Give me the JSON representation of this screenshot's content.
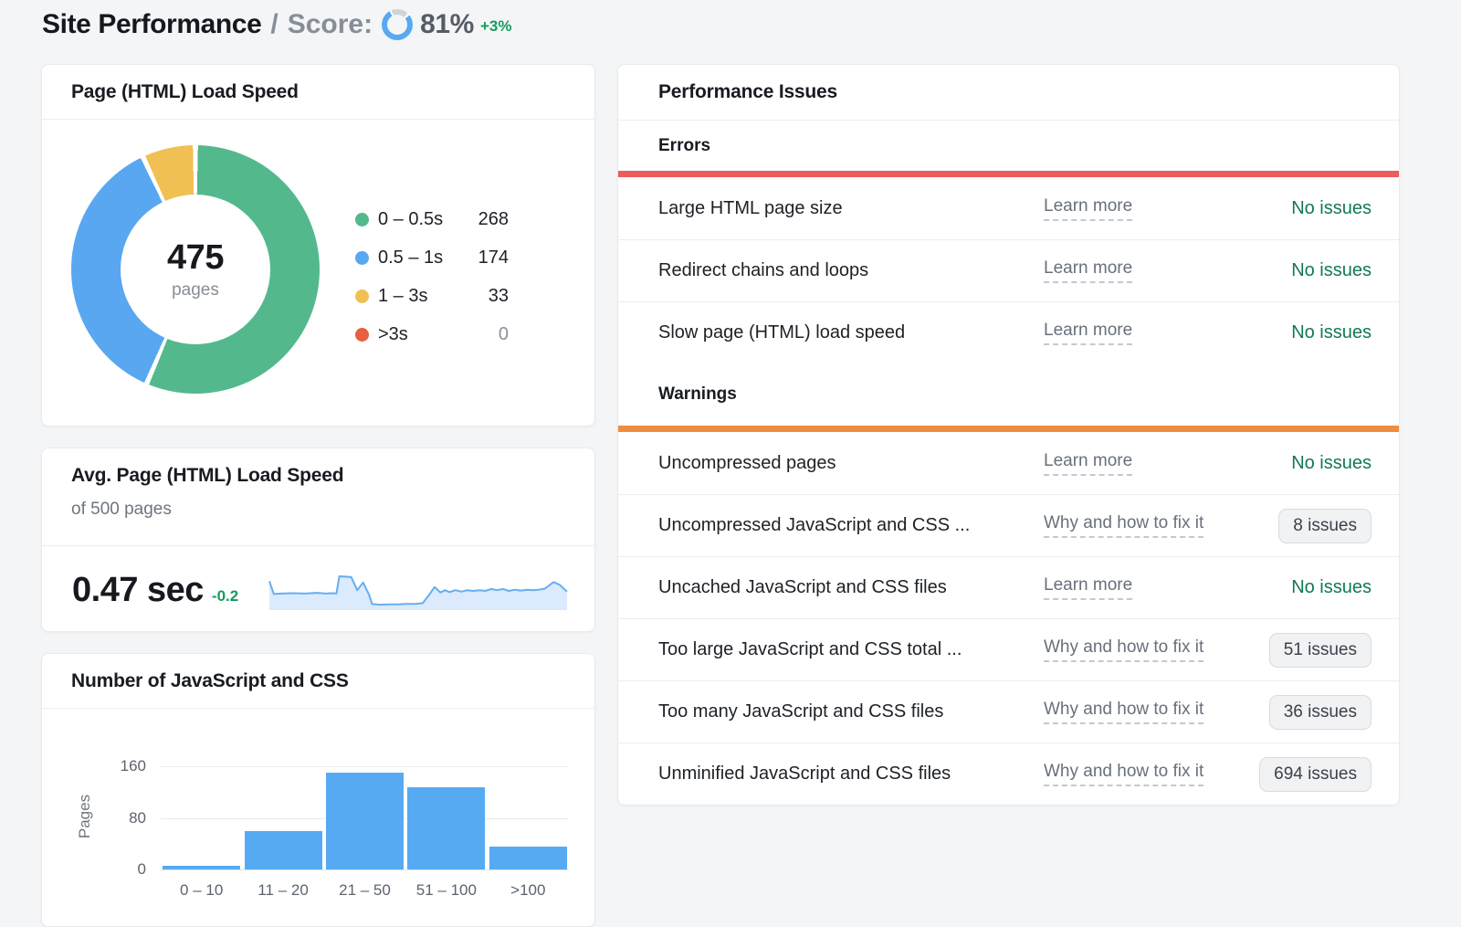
{
  "header": {
    "title": "Site Performance",
    "divider": "/",
    "score_label": "Score:",
    "score_value": "81%",
    "score_percent": 81,
    "score_delta": "+3%"
  },
  "colors": {
    "score_blue": "#58a9f2",
    "score_rest": "#cfd4da",
    "bar_blue": "#56aaf2",
    "spark_line": "#66aef1",
    "spark_fill": "#dbeafc",
    "accent_error": "#eb5c5c",
    "accent_warning": "#ee8d3f",
    "status_green": "#117a50",
    "delta_green": "#169a5f"
  },
  "chart_data": [
    {
      "type": "pie",
      "title": "Page (HTML) Load Speed",
      "center_value": "475",
      "center_label": "pages",
      "legend_position": "right",
      "slices": [
        {
          "label": "0 – 0.5s",
          "value": 268,
          "color": "#53b98d"
        },
        {
          "label": "0.5 – 1s",
          "value": 174,
          "color": "#59a7f0"
        },
        {
          "label": "1 – 3s",
          "value": 33,
          "color": "#f0c052"
        },
        {
          "label": ">3s",
          "value": 0,
          "color": "#e8603d"
        }
      ]
    },
    {
      "type": "area",
      "title": "Avg. Page (HTML) Load Speed",
      "subtitle": "of 500 pages",
      "current_value": "0.47 sec",
      "delta": "-0.2",
      "ylim": [
        0,
        100
      ],
      "points": [
        [
          0,
          75
        ],
        [
          1.5,
          42
        ],
        [
          4,
          43
        ],
        [
          8,
          44
        ],
        [
          12,
          43
        ],
        [
          16,
          45
        ],
        [
          19,
          43
        ],
        [
          21,
          44
        ],
        [
          22.5,
          43
        ],
        [
          23.5,
          88
        ],
        [
          26,
          87
        ],
        [
          27.5,
          86
        ],
        [
          29.5,
          52
        ],
        [
          31.5,
          72
        ],
        [
          33.5,
          40
        ],
        [
          34.5,
          16
        ],
        [
          37,
          14
        ],
        [
          40,
          15
        ],
        [
          43,
          15
        ],
        [
          46,
          16
        ],
        [
          49,
          16
        ],
        [
          51.5,
          18
        ],
        [
          53.5,
          38
        ],
        [
          55.5,
          60
        ],
        [
          57.5,
          46
        ],
        [
          59,
          52
        ],
        [
          60.5,
          47
        ],
        [
          62.5,
          52
        ],
        [
          64.5,
          48
        ],
        [
          66.5,
          52
        ],
        [
          68.5,
          50
        ],
        [
          70.5,
          52
        ],
        [
          72.5,
          50
        ],
        [
          74.5,
          55
        ],
        [
          76.5,
          52
        ],
        [
          78.5,
          55
        ],
        [
          80.5,
          50
        ],
        [
          82.5,
          53
        ],
        [
          84.5,
          51
        ],
        [
          86.5,
          53
        ],
        [
          88.5,
          52
        ],
        [
          90.5,
          53
        ],
        [
          92.5,
          56
        ],
        [
          95.5,
          73
        ],
        [
          97.5,
          66
        ],
        [
          100,
          48
        ]
      ]
    },
    {
      "type": "bar",
      "title": "Number of JavaScript and CSS",
      "categories": [
        "0 – 10",
        "11 – 20",
        "21 – 50",
        "51 – 100",
        ">100"
      ],
      "values": [
        5,
        60,
        150,
        128,
        35
      ],
      "xlabel": "",
      "ylabel": "Pages",
      "yticks": [
        0,
        80,
        160
      ],
      "ylim": [
        0,
        168
      ],
      "grid": true
    }
  ],
  "issues": {
    "title": "Performance Issues",
    "sections": [
      {
        "heading": "Errors",
        "accent": "#eb5c5c",
        "rows": [
          {
            "name": "Large HTML page size",
            "link": "Learn more",
            "status": "No issues",
            "is_badge": false
          },
          {
            "name": "Redirect chains and loops",
            "link": "Learn more",
            "status": "No issues",
            "is_badge": false
          },
          {
            "name": "Slow page (HTML) load speed",
            "link": "Learn more",
            "status": "No issues",
            "is_badge": false
          }
        ]
      },
      {
        "heading": "Warnings",
        "accent": "#ee8d3f",
        "rows": [
          {
            "name": "Uncompressed pages",
            "link": "Learn more",
            "status": "No issues",
            "is_badge": false
          },
          {
            "name": "Uncompressed JavaScript and CSS ...",
            "link": "Why and how to fix it",
            "status": "8 issues",
            "is_badge": true
          },
          {
            "name": "Uncached JavaScript and CSS files",
            "link": "Learn more",
            "status": "No issues",
            "is_badge": false
          },
          {
            "name": "Too large JavaScript and CSS total ...",
            "link": "Why and how to fix it",
            "status": "51 issues",
            "is_badge": true
          },
          {
            "name": "Too many JavaScript and CSS files",
            "link": "Why and how to fix it",
            "status": "36 issues",
            "is_badge": true
          },
          {
            "name": "Unminified JavaScript and CSS files",
            "link": "Why and how to fix it",
            "status": "694 issues",
            "is_badge": true
          }
        ]
      }
    ]
  }
}
